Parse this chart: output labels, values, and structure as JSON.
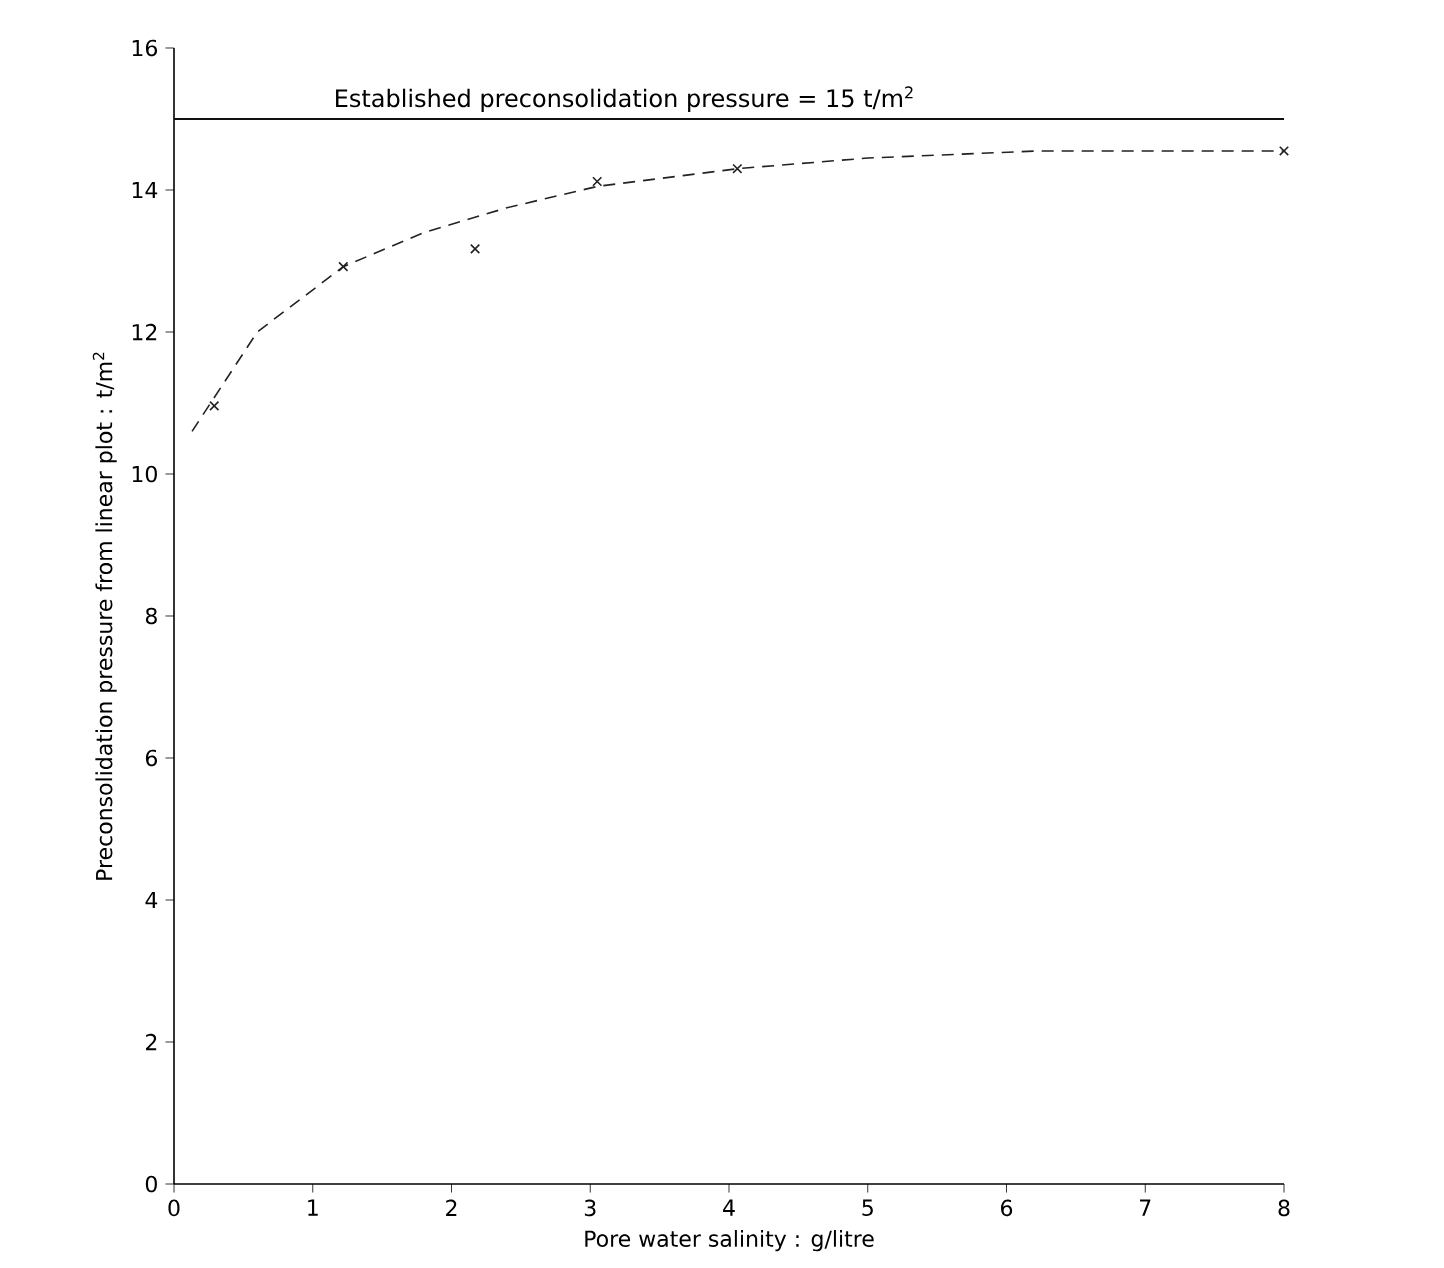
{
  "chart_data": {
    "type": "scatter",
    "xlabel": "Pore water salinity : g/litre",
    "ylabel": "Preconsolidation pressure from linear plot : t/m$^{2}$",
    "xlim": [
      0,
      8
    ],
    "ylim": [
      0,
      16
    ],
    "xticks": [
      0,
      1,
      2,
      3,
      4,
      5,
      6,
      7,
      8
    ],
    "yticks": [
      0,
      2,
      4,
      6,
      8,
      10,
      12,
      14,
      16
    ],
    "grid": false,
    "series": [
      {
        "color": "#222222",
        "marker": "cross",
        "x": [
          0.29,
          1.22,
          2.17,
          3.05,
          4.06,
          8.0
        ],
        "values": [
          10.96,
          12.92,
          13.17,
          14.12,
          14.3,
          14.55
        ]
      },
      {
        "type": "line",
        "color": "#222222",
        "marker": "none",
        "line_style": "dashed",
        "x": [
          0.13,
          0.6,
          1.22,
          1.8,
          2.4,
          3.05,
          4.06,
          5.0,
          5.62,
          6.22,
          7.0,
          8.0
        ],
        "values": [
          10.6,
          12.0,
          12.92,
          13.4,
          13.75,
          14.05,
          14.3,
          14.45,
          14.5,
          14.55,
          14.55,
          14.55
        ]
      }
    ],
    "ref_lines": [
      {
        "axis": "y",
        "value": 15,
        "label": "Established preconsolidation pressure = 15 t/m$^{2}$",
        "color": "#111111",
        "line_style": "solid"
      }
    ]
  }
}
